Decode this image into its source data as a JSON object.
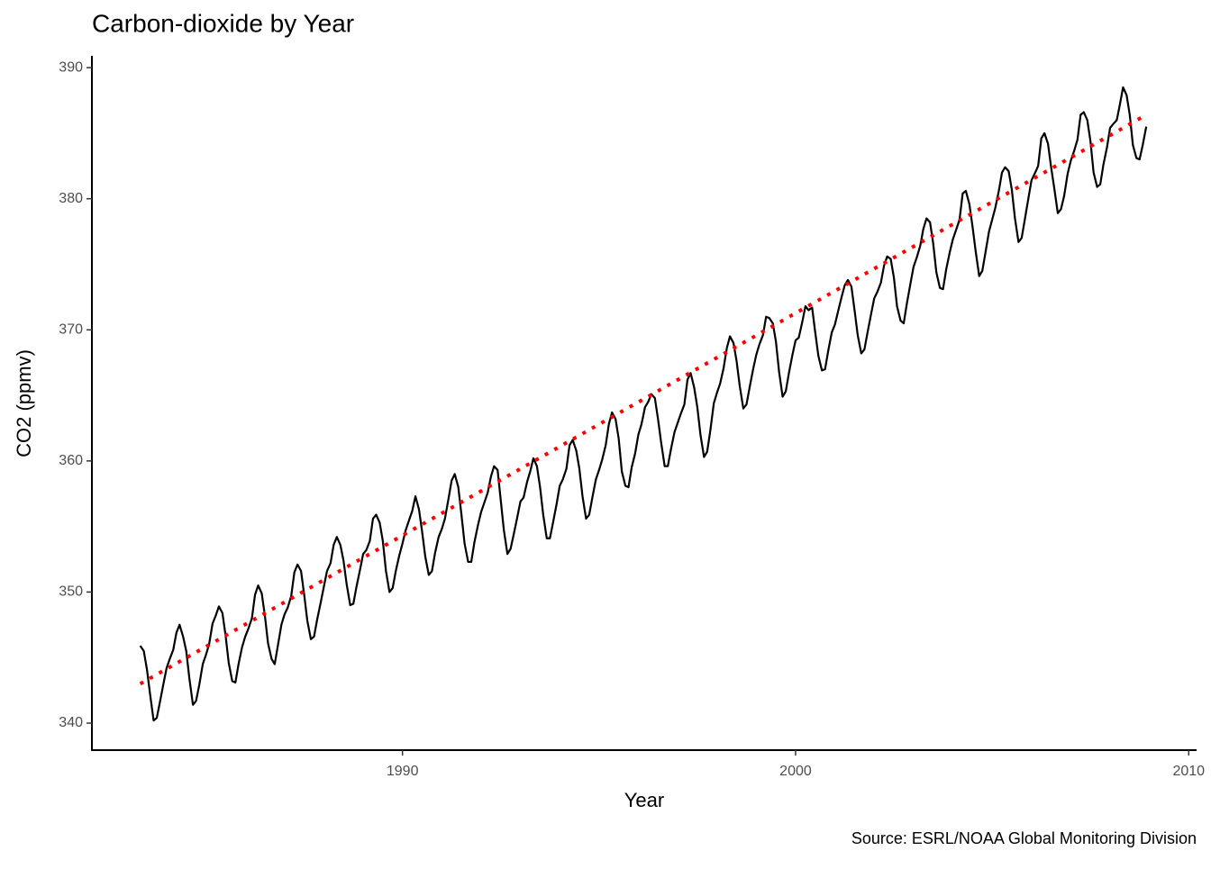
{
  "chart_data": {
    "type": "line",
    "title": "Carbon-dioxide by Year",
    "x_label": "Year",
    "y_label": "CO2 (ppmv)",
    "caption": "Source: ESRL/NOAA Global Monitoring Division",
    "xlim": [
      1982.1,
      2010.2
    ],
    "ylim": [
      337.94,
      390.9
    ],
    "xticks": [
      1990,
      2000,
      2010
    ],
    "yticks": [
      340,
      350,
      360,
      370,
      380,
      390
    ],
    "x": [
      1983.33,
      1983.42,
      1983.5,
      1983.58,
      1983.67,
      1983.75,
      1983.83,
      1983.92,
      1984.0,
      1984.08,
      1984.17,
      1984.25,
      1984.33,
      1984.42,
      1984.5,
      1984.58,
      1984.67,
      1984.75,
      1984.83,
      1984.92,
      1985.0,
      1985.08,
      1985.17,
      1985.25,
      1985.33,
      1985.42,
      1985.5,
      1985.58,
      1985.67,
      1985.75,
      1985.83,
      1985.92,
      1986.0,
      1986.08,
      1986.17,
      1986.25,
      1986.33,
      1986.42,
      1986.5,
      1986.58,
      1986.67,
      1986.75,
      1986.83,
      1986.92,
      1987.0,
      1987.08,
      1987.17,
      1987.25,
      1987.33,
      1987.42,
      1987.5,
      1987.58,
      1987.67,
      1987.75,
      1987.83,
      1987.92,
      1988.0,
      1988.08,
      1988.17,
      1988.25,
      1988.33,
      1988.42,
      1988.5,
      1988.58,
      1988.67,
      1988.75,
      1988.83,
      1988.92,
      1989.0,
      1989.08,
      1989.17,
      1989.25,
      1989.33,
      1989.42,
      1989.5,
      1989.58,
      1989.67,
      1989.75,
      1989.83,
      1989.92,
      1990.0,
      1990.08,
      1990.17,
      1990.25,
      1990.33,
      1990.42,
      1990.5,
      1990.58,
      1990.67,
      1990.75,
      1990.83,
      1990.92,
      1991.0,
      1991.08,
      1991.17,
      1991.25,
      1991.33,
      1991.42,
      1991.5,
      1991.58,
      1991.67,
      1991.75,
      1991.83,
      1991.92,
      1992.0,
      1992.08,
      1992.17,
      1992.25,
      1992.33,
      1992.42,
      1992.5,
      1992.58,
      1992.67,
      1992.75,
      1992.83,
      1992.92,
      1993.0,
      1993.08,
      1993.17,
      1993.25,
      1993.33,
      1993.42,
      1993.5,
      1993.58,
      1993.67,
      1993.75,
      1993.83,
      1993.92,
      1994.0,
      1994.08,
      1994.17,
      1994.25,
      1994.33,
      1994.42,
      1994.5,
      1994.58,
      1994.67,
      1994.75,
      1994.83,
      1994.92,
      1995.0,
      1995.08,
      1995.17,
      1995.25,
      1995.33,
      1995.42,
      1995.5,
      1995.58,
      1995.67,
      1995.75,
      1995.83,
      1995.92,
      1996.0,
      1996.08,
      1996.17,
      1996.25,
      1996.33,
      1996.42,
      1996.5,
      1996.58,
      1996.67,
      1996.75,
      1996.83,
      1996.92,
      1997.0,
      1997.08,
      1997.17,
      1997.25,
      1997.33,
      1997.42,
      1997.5,
      1997.58,
      1997.67,
      1997.75,
      1997.83,
      1997.92,
      1998.0,
      1998.08,
      1998.17,
      1998.25,
      1998.33,
      1998.42,
      1998.5,
      1998.58,
      1998.67,
      1998.75,
      1998.83,
      1998.92,
      1999.0,
      1999.08,
      1999.17,
      1999.25,
      1999.33,
      1999.42,
      1999.5,
      1999.58,
      1999.67,
      1999.75,
      1999.83,
      1999.92,
      2000.0,
      2000.08,
      2000.17,
      2000.25,
      2000.33,
      2000.42,
      2000.5,
      2000.58,
      2000.67,
      2000.75,
      2000.83,
      2000.92,
      2001.0,
      2001.08,
      2001.17,
      2001.25,
      2001.33,
      2001.42,
      2001.5,
      2001.58,
      2001.67,
      2001.75,
      2001.83,
      2001.92,
      2002.0,
      2002.08,
      2002.17,
      2002.25,
      2002.33,
      2002.42,
      2002.5,
      2002.58,
      2002.67,
      2002.75,
      2002.83,
      2002.92,
      2003.0,
      2003.08,
      2003.17,
      2003.25,
      2003.33,
      2003.42,
      2003.5,
      2003.58,
      2003.67,
      2003.75,
      2003.83,
      2003.92,
      2004.0,
      2004.08,
      2004.17,
      2004.25,
      2004.33,
      2004.42,
      2004.5,
      2004.58,
      2004.67,
      2004.75,
      2004.83,
      2004.92,
      2005.0,
      2005.08,
      2005.17,
      2005.25,
      2005.33,
      2005.42,
      2005.5,
      2005.58,
      2005.67,
      2005.75,
      2005.83,
      2005.92,
      2006.0,
      2006.08,
      2006.17,
      2006.25,
      2006.33,
      2006.42,
      2006.5,
      2006.58,
      2006.67,
      2006.75,
      2006.83,
      2006.92,
      2007.0,
      2007.08,
      2007.17,
      2007.25,
      2007.33,
      2007.42,
      2007.5,
      2007.58,
      2007.67,
      2007.75,
      2007.83,
      2007.92,
      2008.0,
      2008.08,
      2008.17,
      2008.25,
      2008.33,
      2008.42,
      2008.5,
      2008.58,
      2008.67,
      2008.75,
      2008.83,
      2008.92
    ],
    "series": [
      {
        "color": "#000000",
        "values": [
          345.9,
          345.5,
          344.1,
          342.2,
          340.2,
          340.4,
          341.6,
          343.0,
          344.2,
          344.9,
          345.6,
          346.9,
          347.5,
          346.6,
          345.5,
          343.4,
          341.4,
          341.7,
          342.9,
          344.5,
          345.2,
          346.0,
          347.6,
          348.2,
          348.9,
          348.4,
          346.7,
          344.6,
          343.2,
          343.1,
          344.5,
          345.8,
          346.6,
          347.2,
          348.0,
          349.8,
          350.5,
          349.9,
          348.2,
          346.1,
          344.9,
          344.5,
          345.9,
          347.5,
          348.3,
          348.8,
          349.7,
          351.5,
          352.1,
          351.6,
          349.8,
          347.8,
          346.4,
          346.6,
          347.9,
          349.2,
          350.4,
          351.6,
          352.2,
          353.6,
          354.2,
          353.6,
          352.4,
          350.6,
          349.0,
          349.1,
          350.4,
          351.7,
          352.9,
          353.2,
          353.9,
          355.6,
          355.9,
          355.3,
          353.9,
          351.6,
          350.0,
          350.3,
          351.6,
          352.8,
          353.7,
          354.7,
          355.5,
          356.2,
          357.3,
          356.3,
          354.6,
          352.7,
          351.3,
          351.6,
          353.0,
          354.2,
          354.8,
          355.6,
          357.1,
          358.5,
          359.0,
          358.0,
          355.9,
          353.7,
          352.3,
          352.3,
          353.8,
          355.1,
          356.1,
          356.8,
          357.6,
          358.8,
          359.6,
          359.3,
          357.0,
          354.7,
          352.9,
          353.3,
          354.4,
          355.7,
          356.9,
          357.2,
          358.4,
          359.2,
          360.2,
          359.6,
          358.0,
          355.9,
          354.1,
          354.1,
          355.3,
          356.7,
          358.1,
          358.6,
          359.4,
          361.2,
          361.6,
          360.8,
          359.4,
          357.3,
          355.6,
          355.9,
          357.2,
          358.6,
          359.3,
          360.1,
          361.2,
          362.8,
          363.7,
          363.2,
          361.7,
          359.2,
          358.1,
          358.0,
          359.5,
          360.6,
          362.0,
          362.8,
          364.1,
          364.5,
          365.1,
          364.8,
          363.2,
          361.4,
          359.6,
          359.6,
          360.9,
          362.2,
          362.9,
          363.6,
          364.3,
          366.2,
          366.7,
          365.6,
          364.1,
          362.0,
          360.3,
          360.7,
          362.3,
          364.4,
          365.2,
          365.9,
          367.1,
          368.6,
          369.5,
          369.0,
          367.6,
          365.7,
          364.0,
          364.3,
          365.6,
          367.0,
          368.1,
          368.9,
          369.6,
          371.0,
          370.9,
          370.5,
          369.1,
          366.8,
          364.9,
          365.3,
          366.7,
          368.1,
          369.2,
          369.4,
          370.6,
          371.8,
          371.5,
          371.7,
          369.8,
          368.0,
          366.9,
          367.0,
          368.4,
          369.8,
          370.4,
          371.4,
          372.5,
          373.4,
          373.8,
          373.3,
          371.5,
          369.6,
          368.2,
          368.5,
          369.8,
          371.2,
          372.4,
          372.9,
          373.6,
          374.9,
          375.6,
          375.4,
          374.0,
          371.8,
          370.7,
          370.5,
          372.0,
          373.5,
          374.8,
          375.5,
          376.4,
          377.7,
          378.5,
          378.2,
          376.6,
          374.4,
          373.2,
          373.1,
          374.6,
          375.9,
          376.9,
          377.6,
          378.4,
          380.4,
          380.6,
          379.6,
          377.9,
          376.0,
          374.1,
          374.5,
          375.9,
          377.5,
          378.4,
          379.3,
          380.6,
          382.0,
          382.4,
          382.1,
          380.7,
          378.5,
          376.7,
          377.0,
          378.4,
          380.0,
          381.4,
          381.9,
          382.5,
          384.6,
          385.0,
          384.2,
          382.4,
          380.8,
          378.9,
          379.2,
          380.2,
          381.9,
          382.9,
          383.6,
          384.5,
          386.4,
          386.6,
          386.0,
          384.4,
          382.0,
          380.9,
          381.1,
          382.6,
          383.9,
          385.4,
          385.7,
          386.0,
          387.2,
          388.5,
          387.9,
          386.4,
          384.1,
          383.1,
          383.0,
          384.1,
          385.5
        ]
      }
    ],
    "trend": {
      "x": [
        1983.33,
        2008.92
      ],
      "values": [
        343.0,
        386.4
      ],
      "color": "#ff0000",
      "dash": "dotted"
    }
  }
}
